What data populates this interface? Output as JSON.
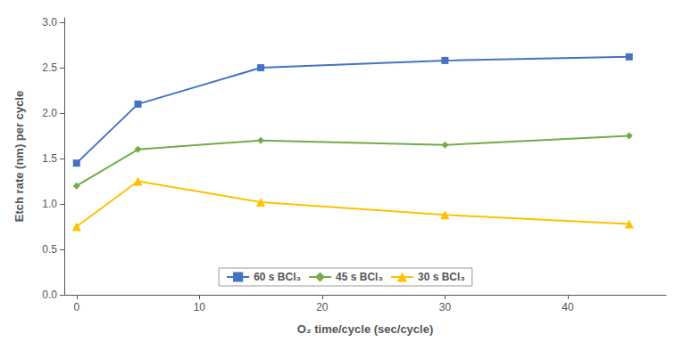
{
  "chart_data": {
    "type": "line",
    "xlabel": "O₂ time/cycle (sec/cycle)",
    "ylabel": "Etch rate (nm) per cycle",
    "xlim": [
      -1,
      48
    ],
    "ylim": [
      0,
      3.05
    ],
    "xticks": [
      0,
      10,
      20,
      30,
      40
    ],
    "yticks": [
      {
        "value": 0,
        "label": "0.0"
      },
      0.5,
      {
        "value": 1.0,
        "label": "1.0"
      },
      1.5,
      {
        "value": 2.0,
        "label": "2.0"
      },
      2.5,
      {
        "value": 3.0,
        "label": "3.0"
      }
    ],
    "grid": false,
    "legend": "bottom",
    "series": [
      {
        "name": "60 s BCl₃",
        "color": "#4472C4",
        "marker": "square",
        "x": [
          0,
          5,
          15,
          30,
          45
        ],
        "values": [
          1.45,
          2.1,
          2.5,
          2.58,
          2.62
        ]
      },
      {
        "name": "45 s BCl₃",
        "color": "#70AD47",
        "marker": "diamond",
        "x": [
          0,
          5,
          15,
          30,
          45
        ],
        "values": [
          1.2,
          1.6,
          1.7,
          1.65,
          1.75
        ]
      },
      {
        "name": "30 s BCl₃",
        "color": "#FFC000",
        "marker": "triangle",
        "x": [
          0,
          5,
          15,
          30,
          45
        ],
        "values": [
          0.75,
          1.25,
          1.02,
          0.88,
          0.78
        ]
      }
    ]
  }
}
